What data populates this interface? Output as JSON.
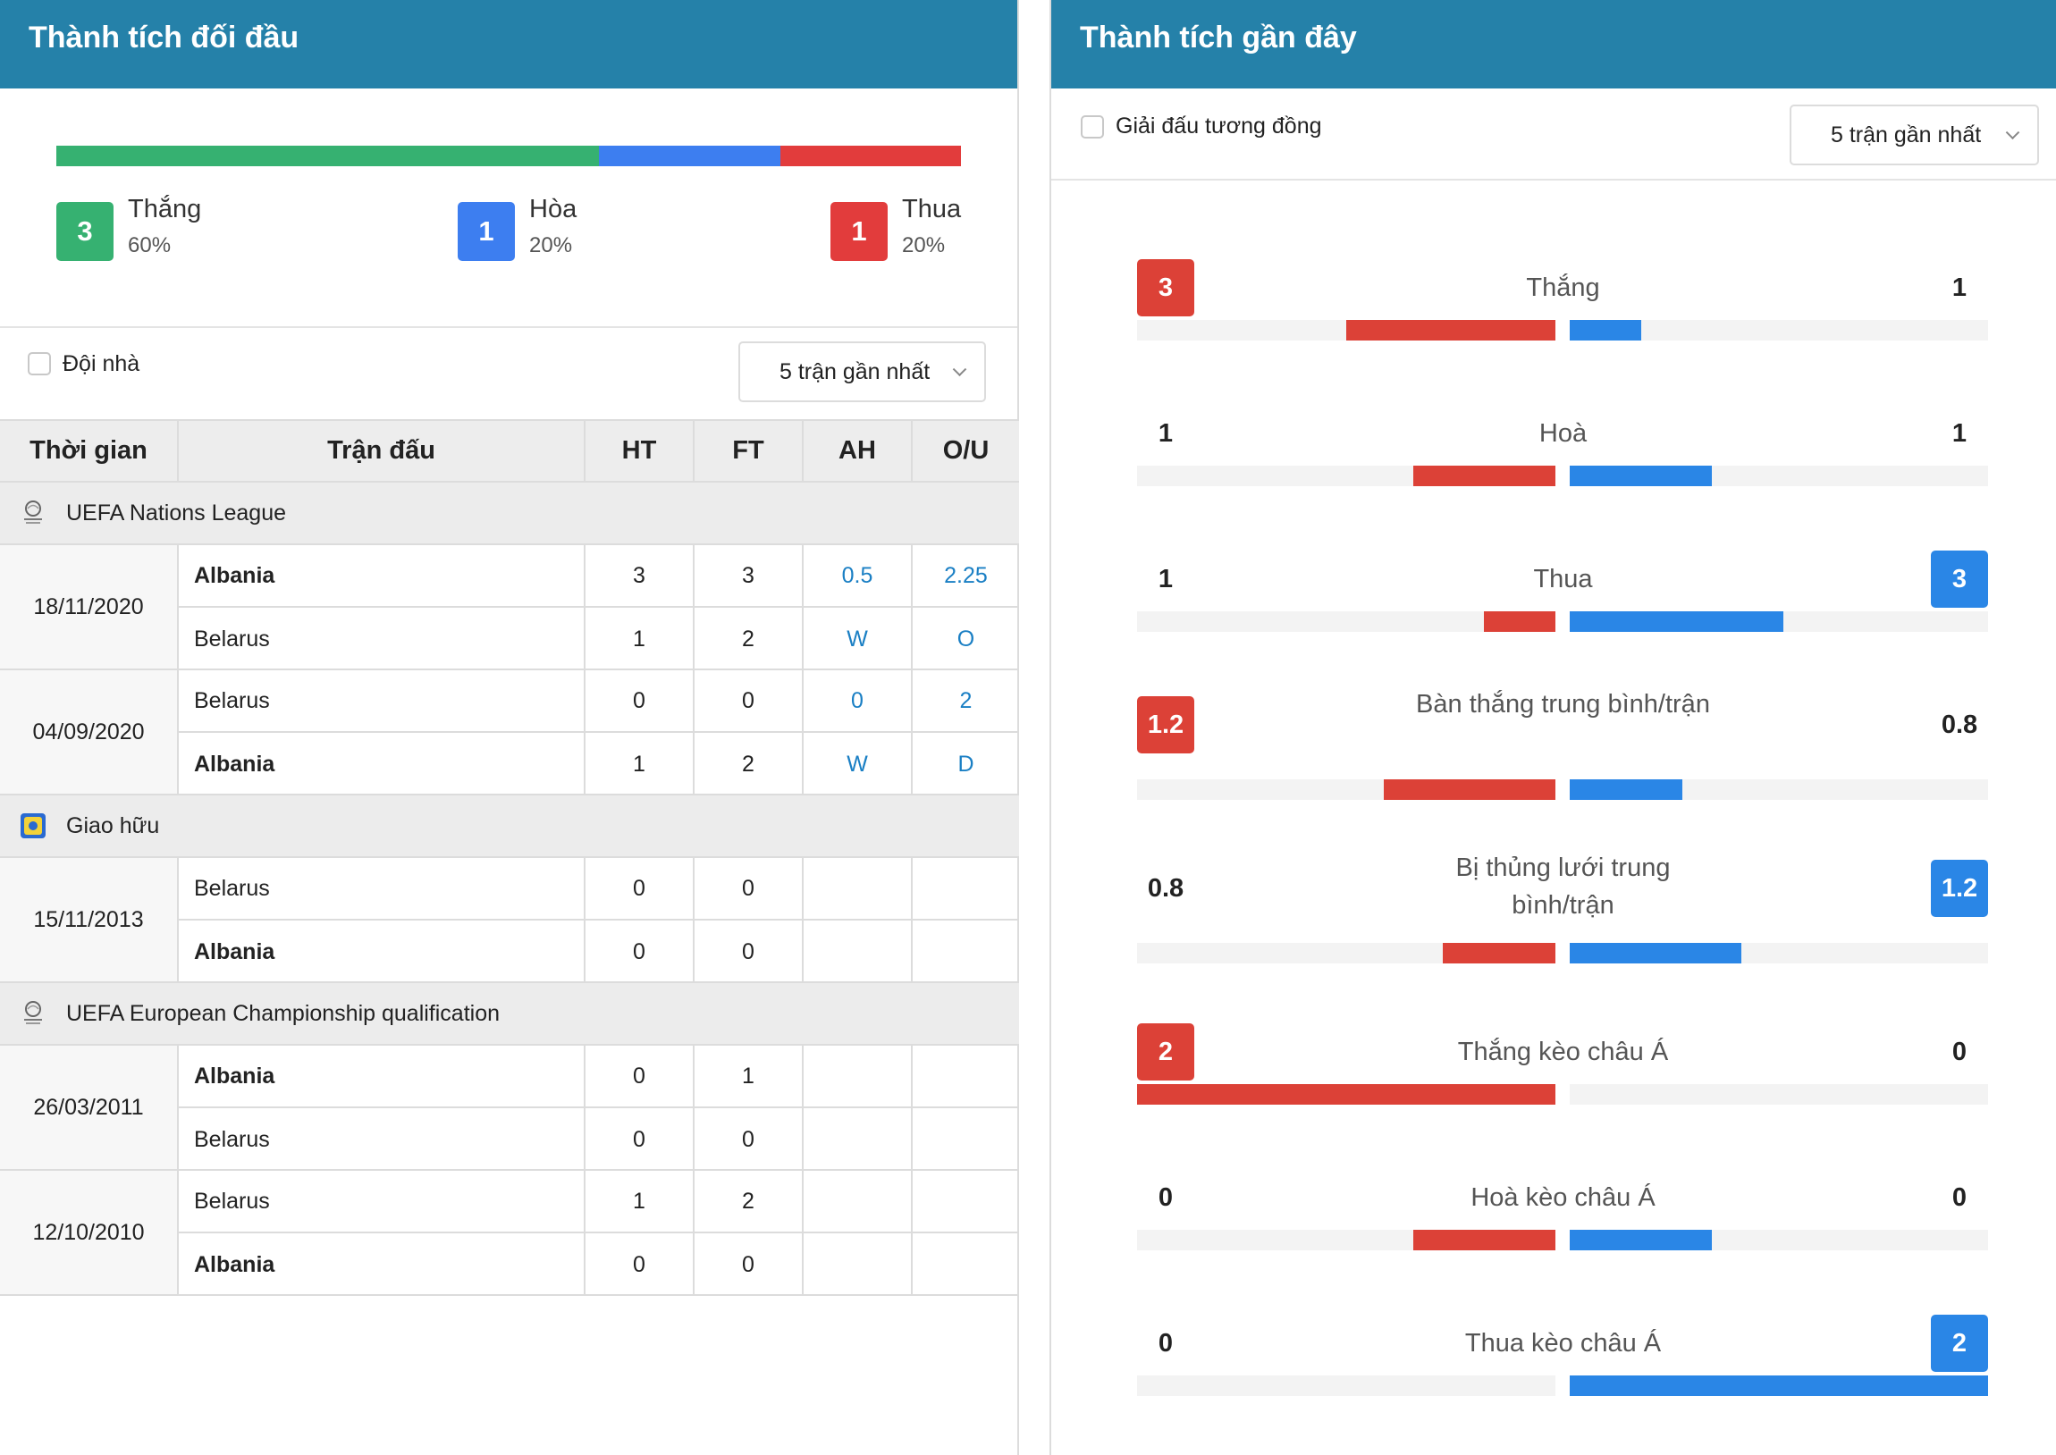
{
  "left": {
    "title": "Thành tích đối đầu",
    "summary": {
      "colors": {
        "win": "#36b171",
        "draw": "#3d7ef0",
        "loss": "#e23c3c"
      },
      "win": {
        "count": "3",
        "label": "Thắng",
        "pct": "60%",
        "share": 0.6
      },
      "draw": {
        "count": "1",
        "label": "Hòa",
        "pct": "20%",
        "share": 0.2
      },
      "loss": {
        "count": "1",
        "label": "Thua",
        "pct": "20%",
        "share": 0.2
      }
    },
    "filter": {
      "checkbox_label": "Đội nhà",
      "select_value": "5 trận gần nhất"
    },
    "table": {
      "headers": {
        "time": "Thời gian",
        "match": "Trận đấu",
        "ht": "HT",
        "ft": "FT",
        "ah": "AH",
        "ou": "O/U"
      },
      "leagues": [
        {
          "name": "UEFA Nations League",
          "logo_icon": "nations-league-logo-icon",
          "matches": [
            {
              "date": "18/11/2020",
              "rows": [
                {
                  "team": "Albania",
                  "bold": true,
                  "ht": "3",
                  "ft": "3",
                  "ah": "0.5",
                  "ou": "2.25"
                },
                {
                  "team": "Belarus",
                  "bold": false,
                  "ht": "1",
                  "ft": "2",
                  "ah": "W",
                  "ou": "O"
                }
              ]
            },
            {
              "date": "04/09/2020",
              "rows": [
                {
                  "team": "Belarus",
                  "bold": false,
                  "ht": "0",
                  "ft": "0",
                  "ah": "0",
                  "ou": "2"
                },
                {
                  "team": "Albania",
                  "bold": true,
                  "ht": "1",
                  "ft": "2",
                  "ah": "W",
                  "ou": "D"
                }
              ]
            }
          ]
        },
        {
          "name": "Giao hữu",
          "logo_icon": "friendly-logo-icon",
          "matches": [
            {
              "date": "15/11/2013",
              "rows": [
                {
                  "team": "Belarus",
                  "bold": false,
                  "ht": "0",
                  "ft": "0",
                  "ah": "",
                  "ou": ""
                },
                {
                  "team": "Albania",
                  "bold": true,
                  "ht": "0",
                  "ft": "0",
                  "ah": "",
                  "ou": ""
                }
              ]
            }
          ]
        },
        {
          "name": "UEFA European Championship qualification",
          "logo_icon": "euro-qualifiers-logo-icon",
          "matches": [
            {
              "date": "26/03/2011",
              "rows": [
                {
                  "team": "Albania",
                  "bold": true,
                  "ht": "0",
                  "ft": "1",
                  "ah": "",
                  "ou": ""
                },
                {
                  "team": "Belarus",
                  "bold": false,
                  "ht": "0",
                  "ft": "0",
                  "ah": "",
                  "ou": ""
                }
              ]
            },
            {
              "date": "12/10/2010",
              "rows": [
                {
                  "team": "Belarus",
                  "bold": false,
                  "ht": "1",
                  "ft": "2",
                  "ah": "",
                  "ou": ""
                },
                {
                  "team": "Albania",
                  "bold": true,
                  "ht": "0",
                  "ft": "0",
                  "ah": "",
                  "ou": ""
                }
              ]
            }
          ]
        }
      ]
    }
  },
  "right": {
    "title": "Thành tích gần đây",
    "filter": {
      "checkbox_label": "Giải đấu tương đồng",
      "select_value": "5 trận gần nhất"
    },
    "colors": {
      "home": "#dc4137",
      "away": "#2a86e6"
    },
    "stats": [
      {
        "label": "Thắng",
        "home": "3",
        "away": "1",
        "home_highlight": true,
        "away_highlight": false,
        "home_fill": 0.5,
        "away_fill": 0.17
      },
      {
        "label": "Hoà",
        "home": "1",
        "away": "1",
        "home_highlight": false,
        "away_highlight": false,
        "home_fill": 0.34,
        "away_fill": 0.34
      },
      {
        "label": "Thua",
        "home": "1",
        "away": "3",
        "home_highlight": false,
        "away_highlight": true,
        "home_fill": 0.17,
        "away_fill": 0.51
      },
      {
        "label": "Bàn thắng trung bình/trận",
        "home": "1.2",
        "away": "0.8",
        "home_highlight": true,
        "away_highlight": false,
        "home_fill": 0.41,
        "away_fill": 0.27
      },
      {
        "label": "Bị thủng lưới trung bình/trận",
        "home": "0.8",
        "away": "1.2",
        "home_highlight": false,
        "away_highlight": true,
        "home_fill": 0.27,
        "away_fill": 0.41
      },
      {
        "label": "Thắng kèo châu Á",
        "home": "2",
        "away": "0",
        "home_highlight": true,
        "away_highlight": false,
        "home_fill": 1.0,
        "away_fill": 0.0
      },
      {
        "label": "Hoà kèo châu Á",
        "home": "0",
        "away": "0",
        "home_highlight": false,
        "away_highlight": false,
        "home_fill": 0.34,
        "away_fill": 0.34
      },
      {
        "label": "Thua kèo châu Á",
        "home": "0",
        "away": "2",
        "home_highlight": false,
        "away_highlight": true,
        "home_fill": 0.0,
        "away_fill": 1.0
      }
    ]
  }
}
